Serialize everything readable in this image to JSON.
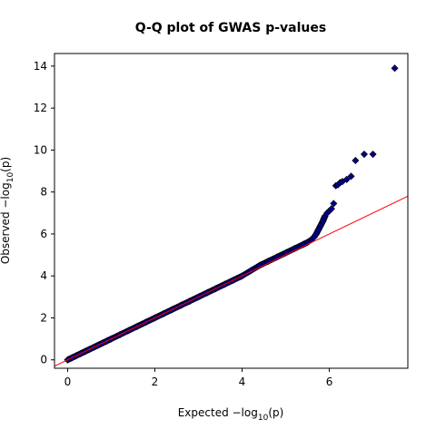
{
  "chart_data": {
    "type": "scatter",
    "title": "Q-Q plot of GWAS p-values",
    "xlabel": {
      "prefix": "Expected  −log",
      "sub": "10",
      "suffix": "(p)"
    },
    "ylabel": {
      "prefix": "Observed  −log",
      "sub": "10",
      "suffix": "(p)"
    },
    "xlim": [
      -0.3,
      7.8
    ],
    "ylim": [
      -0.4,
      14.6
    ],
    "xticks": [
      0,
      2,
      4,
      6
    ],
    "yticks": [
      0,
      2,
      4,
      6,
      8,
      10,
      12,
      14
    ],
    "grid": false,
    "reference_line": {
      "slope": 1,
      "intercept": 0,
      "color": "#ff0000"
    },
    "point_color": "#00008b",
    "marker": "diamond",
    "series": [
      {
        "values_note_free": true,
        "x": [
          0.0,
          0.1,
          0.2,
          0.3,
          0.4,
          0.5,
          0.6,
          0.7,
          0.8,
          0.9,
          1.0,
          1.2,
          1.4,
          1.6,
          1.8,
          2.0,
          2.2,
          2.4,
          2.6,
          2.8,
          3.0,
          3.2,
          3.4,
          3.6,
          3.8,
          4.0,
          4.2,
          4.4,
          4.6,
          4.8,
          5.0,
          5.2,
          5.4,
          5.5,
          5.6,
          5.65,
          5.7,
          5.75,
          5.8,
          5.85,
          5.9,
          5.95,
          6.0,
          6.05,
          6.1,
          6.15,
          6.2,
          6.25,
          6.3,
          6.4,
          6.5,
          6.6,
          6.8,
          7.0,
          7.5
        ],
        "y": [
          0.0,
          0.1,
          0.2,
          0.3,
          0.4,
          0.5,
          0.6,
          0.7,
          0.8,
          0.9,
          1.0,
          1.2,
          1.4,
          1.6,
          1.8,
          2.0,
          2.2,
          2.4,
          2.6,
          2.8,
          3.0,
          3.2,
          3.4,
          3.6,
          3.8,
          4.0,
          4.25,
          4.5,
          4.7,
          4.9,
          5.1,
          5.3,
          5.5,
          5.6,
          5.75,
          5.85,
          6.0,
          6.2,
          6.4,
          6.6,
          6.85,
          7.0,
          7.1,
          7.2,
          7.45,
          8.3,
          8.35,
          8.45,
          8.5,
          8.6,
          8.75,
          9.5,
          9.8,
          9.8,
          13.9
        ]
      }
    ]
  }
}
